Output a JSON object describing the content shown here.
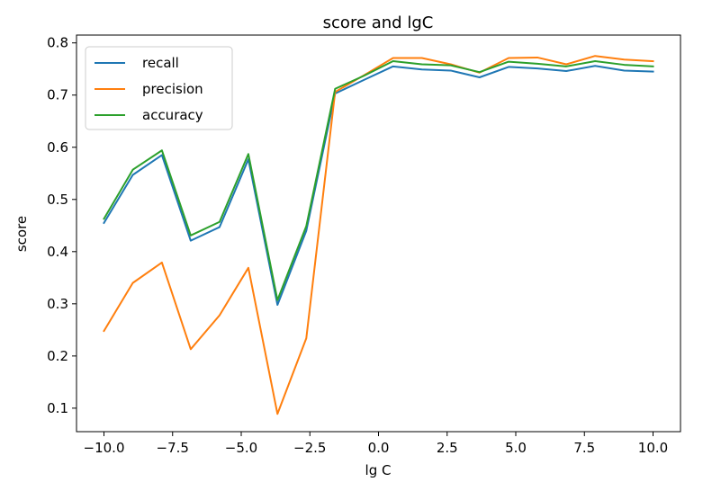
{
  "chart_data": {
    "type": "line",
    "title": "score and lgC",
    "xlabel": "lg C",
    "ylabel": "score",
    "xlim": [
      -11,
      11
    ],
    "ylim": [
      0.055,
      0.815
    ],
    "xticks": [
      -10.0,
      -7.5,
      -5.0,
      -2.5,
      0.0,
      2.5,
      5.0,
      7.5,
      10.0
    ],
    "xtick_labels": [
      "−10.0",
      "−7.5",
      "−5.0",
      "−2.5",
      "0.0",
      "2.5",
      "5.0",
      "7.5",
      "10.0"
    ],
    "yticks": [
      0.1,
      0.2,
      0.3,
      0.4,
      0.5,
      0.6,
      0.7,
      0.8
    ],
    "ytick_labels": [
      "0.1",
      "0.2",
      "0.3",
      "0.4",
      "0.5",
      "0.6",
      "0.7",
      "0.8"
    ],
    "grid": false,
    "legend_position": "top-left",
    "x": [
      -10.0,
      -8.95,
      -7.89,
      -6.84,
      -5.79,
      -4.74,
      -3.68,
      -2.63,
      -1.58,
      -0.53,
      0.53,
      1.58,
      2.63,
      3.68,
      4.74,
      5.79,
      6.84,
      7.89,
      8.95,
      10.0
    ],
    "series": [
      {
        "name": "recall",
        "color": "#1f77b4",
        "values": [
          0.455,
          0.547,
          0.585,
          0.421,
          0.447,
          0.577,
          0.298,
          0.44,
          0.703,
          0.729,
          0.755,
          0.749,
          0.747,
          0.734,
          0.754,
          0.751,
          0.746,
          0.756,
          0.747,
          0.745
        ]
      },
      {
        "name": "precision",
        "color": "#ff7f0e",
        "values": [
          0.248,
          0.34,
          0.379,
          0.213,
          0.278,
          0.369,
          0.089,
          0.234,
          0.706,
          0.738,
          0.771,
          0.771,
          0.759,
          0.743,
          0.771,
          0.772,
          0.759,
          0.775,
          0.768,
          0.765
        ]
      },
      {
        "name": "accuracy",
        "color": "#2ca02c",
        "values": [
          0.463,
          0.557,
          0.594,
          0.431,
          0.457,
          0.587,
          0.307,
          0.449,
          0.712,
          0.737,
          0.765,
          0.759,
          0.757,
          0.744,
          0.764,
          0.76,
          0.755,
          0.765,
          0.758,
          0.755
        ]
      }
    ]
  }
}
